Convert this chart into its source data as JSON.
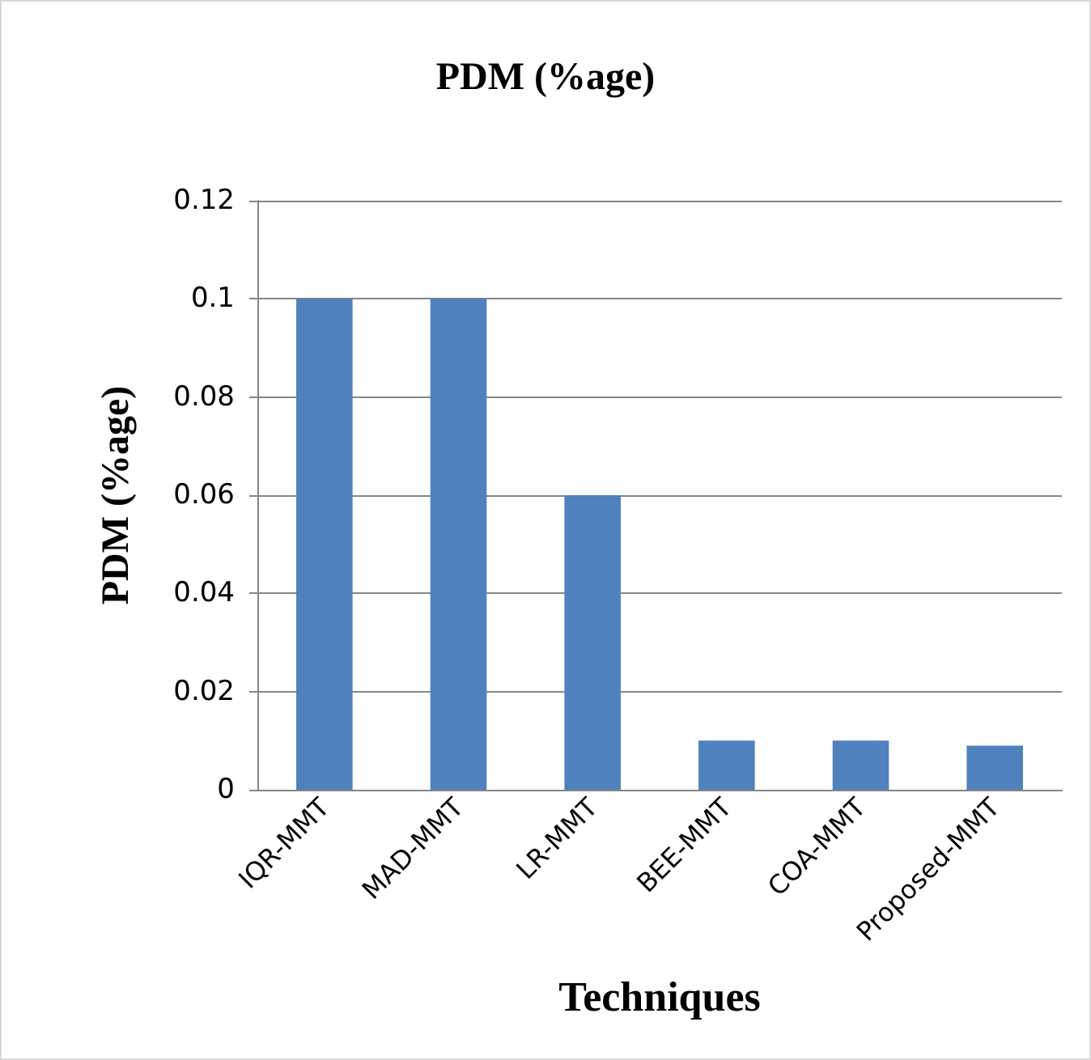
{
  "chart_data": {
    "type": "bar",
    "title": "PDM (%age)",
    "xlabel": "Techniques",
    "ylabel": "PDM (%age)",
    "categories": [
      "IQR-MMT",
      "MAD-MMT",
      "LR-MMT",
      "BEE-MMT",
      "COA-MMT",
      "Proposed-MMT"
    ],
    "values": [
      0.1,
      0.1,
      0.06,
      0.01,
      0.01,
      0.009
    ],
    "color": "#4f81bd",
    "ylim": [
      0,
      0.12
    ],
    "yticks": [
      0,
      0.02,
      0.04,
      0.06,
      0.08,
      0.1,
      0.12
    ],
    "grid": "y"
  }
}
